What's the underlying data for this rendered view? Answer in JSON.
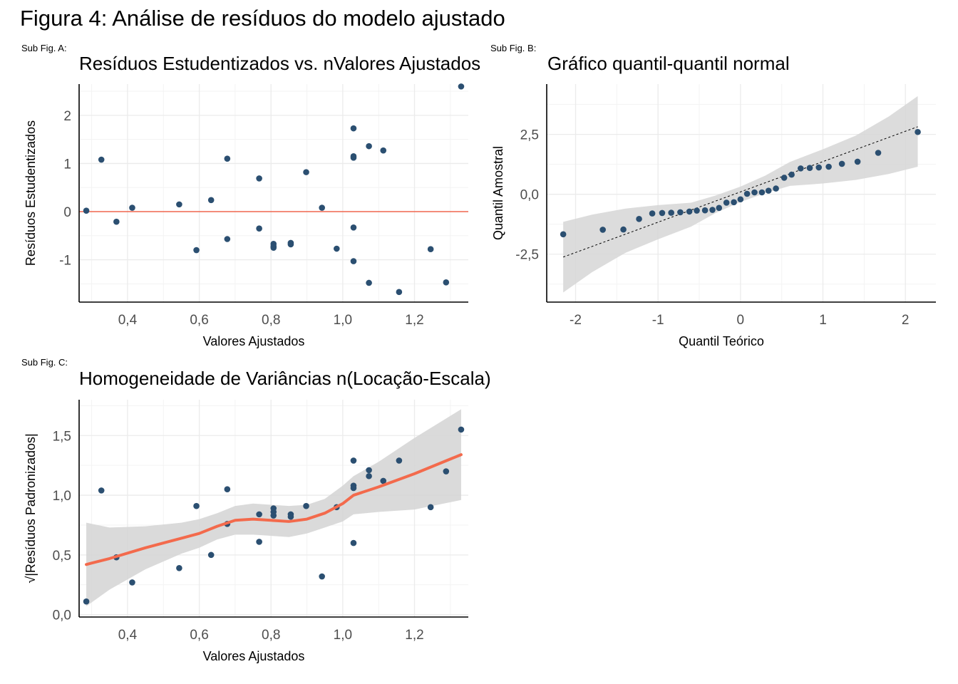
{
  "figure": {
    "title": "Figura 4: Análise de resíduos do modelo ajustado"
  },
  "colors": {
    "point": "#2b4f71",
    "ref_line": "#f2674f",
    "smooth": "#f36a4c",
    "band": "#d6d6d6",
    "grid": "#ebebeb",
    "axis": "#000000"
  },
  "panels": {
    "a": {
      "tag": "Sub Fig. A:",
      "title": "Resíduos Estudentizados vs. nValores Ajustados"
    },
    "b": {
      "tag": "Sub Fig. B:",
      "title": "Gráfico quantil-quantil normal"
    },
    "c": {
      "tag": "Sub Fig. C:",
      "title": "Homogeneidade de Variâncias n(Locação-Escala)"
    }
  },
  "chart_data": [
    {
      "type": "scatter",
      "xlabel": "Valores Ajustados",
      "ylabel": "Resíduos Estudentizados",
      "xlim": [
        0.265,
        1.35
      ],
      "ylim": [
        -1.88,
        2.65
      ],
      "xticks": [
        0.4,
        0.6,
        0.8,
        1.0,
        1.2
      ],
      "xtick_labels": [
        "0,4",
        "0,6",
        "0,8",
        "1,0",
        "1,2"
      ],
      "yticks": [
        -1,
        0,
        1,
        2
      ],
      "ytick_labels": [
        "-1",
        "0",
        "1",
        "2"
      ],
      "hline": 0,
      "grid": true,
      "points": [
        [
          0.285,
          0.02
        ],
        [
          0.327,
          1.08
        ],
        [
          0.369,
          -0.21
        ],
        [
          0.413,
          0.08
        ],
        [
          0.544,
          0.15
        ],
        [
          0.592,
          -0.8
        ],
        [
          0.633,
          0.24
        ],
        [
          0.678,
          1.1
        ],
        [
          0.678,
          -0.57
        ],
        [
          0.767,
          0.69
        ],
        [
          0.767,
          -0.35
        ],
        [
          0.807,
          -0.67
        ],
        [
          0.807,
          -0.72
        ],
        [
          0.807,
          -0.75
        ],
        [
          0.855,
          -0.65
        ],
        [
          0.855,
          -0.68
        ],
        [
          0.898,
          0.82
        ],
        [
          0.942,
          0.08
        ],
        [
          0.983,
          -0.77
        ],
        [
          1.03,
          1.73
        ],
        [
          1.03,
          1.15
        ],
        [
          1.03,
          1.12
        ],
        [
          1.03,
          -0.33
        ],
        [
          1.03,
          -1.03
        ],
        [
          1.073,
          1.36
        ],
        [
          1.073,
          -1.48
        ],
        [
          1.113,
          1.27
        ],
        [
          1.157,
          -1.67
        ],
        [
          1.245,
          -0.78
        ],
        [
          1.288,
          -1.47
        ],
        [
          1.33,
          2.6
        ]
      ]
    },
    {
      "type": "scatter",
      "xlabel": "Quantil Teórico",
      "ylabel": "Quantil Amostral",
      "xlim": [
        -2.35,
        2.37
      ],
      "ylim": [
        -4.5,
        4.6
      ],
      "xticks": [
        -2,
        -1,
        0,
        1,
        2
      ],
      "xtick_labels": [
        "-2",
        "-1",
        "0",
        "1",
        "2"
      ],
      "yticks": [
        -2.5,
        0,
        2.5
      ],
      "ytick_labels": [
        "-2,5",
        "0,0",
        "2,5"
      ],
      "grid": true,
      "reference_line": [
        [
          -2.15,
          -2.62
        ],
        [
          2.15,
          2.82
        ]
      ],
      "confidence_band": {
        "x": [
          -2.15,
          -1.8,
          -1.4,
          -1.0,
          -0.6,
          -0.3,
          0.0,
          0.3,
          0.6,
          1.0,
          1.4,
          1.8,
          2.15
        ],
        "upper": [
          -1.15,
          -0.85,
          -0.6,
          -0.45,
          -0.35,
          -0.05,
          0.32,
          0.78,
          1.35,
          1.88,
          2.45,
          3.25,
          4.1
        ],
        "lower": [
          -4.1,
          -3.25,
          -2.45,
          -1.88,
          -1.35,
          -0.78,
          -0.32,
          0.05,
          0.35,
          0.45,
          0.6,
          0.85,
          1.15
        ]
      },
      "points": [
        [
          -2.15,
          -1.67
        ],
        [
          -1.67,
          -1.48
        ],
        [
          -1.42,
          -1.47
        ],
        [
          -1.23,
          -1.03
        ],
        [
          -1.07,
          -0.8
        ],
        [
          -0.95,
          -0.78
        ],
        [
          -0.84,
          -0.77
        ],
        [
          -0.73,
          -0.75
        ],
        [
          -0.62,
          -0.72
        ],
        [
          -0.53,
          -0.68
        ],
        [
          -0.43,
          -0.67
        ],
        [
          -0.34,
          -0.65
        ],
        [
          -0.26,
          -0.57
        ],
        [
          -0.17,
          -0.35
        ],
        [
          -0.08,
          -0.33
        ],
        [
          0.0,
          -0.21
        ],
        [
          0.08,
          0.02
        ],
        [
          0.17,
          0.08
        ],
        [
          0.26,
          0.08
        ],
        [
          0.34,
          0.15
        ],
        [
          0.43,
          0.24
        ],
        [
          0.53,
          0.69
        ],
        [
          0.62,
          0.82
        ],
        [
          0.73,
          1.08
        ],
        [
          0.84,
          1.1
        ],
        [
          0.95,
          1.12
        ],
        [
          1.07,
          1.15
        ],
        [
          1.23,
          1.27
        ],
        [
          1.42,
          1.36
        ],
        [
          1.67,
          1.73
        ],
        [
          2.15,
          2.6
        ]
      ]
    },
    {
      "type": "scatter",
      "xlabel": "Valores Ajustados",
      "ylabel": "√|Resíduos Padronizados|",
      "xlim": [
        0.265,
        1.35
      ],
      "ylim": [
        -0.02,
        1.8
      ],
      "xticks": [
        0.4,
        0.6,
        0.8,
        1.0,
        1.2
      ],
      "xtick_labels": [
        "0,4",
        "0,6",
        "0,8",
        "1,0",
        "1,2"
      ],
      "yticks": [
        0.0,
        0.5,
        1.0,
        1.5
      ],
      "ytick_labels": [
        "0,0",
        "0,5",
        "1,0",
        "1,5"
      ],
      "grid": true,
      "points": [
        [
          0.285,
          0.11
        ],
        [
          0.327,
          1.04
        ],
        [
          0.369,
          0.48
        ],
        [
          0.413,
          0.27
        ],
        [
          0.544,
          0.39
        ],
        [
          0.592,
          0.91
        ],
        [
          0.633,
          0.5
        ],
        [
          0.678,
          1.05
        ],
        [
          0.678,
          0.76
        ],
        [
          0.767,
          0.84
        ],
        [
          0.767,
          0.61
        ],
        [
          0.807,
          0.89
        ],
        [
          0.807,
          0.86
        ],
        [
          0.807,
          0.83
        ],
        [
          0.855,
          0.84
        ],
        [
          0.855,
          0.82
        ],
        [
          0.898,
          0.91
        ],
        [
          0.942,
          0.32
        ],
        [
          0.983,
          0.9
        ],
        [
          1.03,
          1.29
        ],
        [
          1.03,
          1.08
        ],
        [
          1.03,
          1.06
        ],
        [
          1.03,
          0.6
        ],
        [
          1.073,
          1.21
        ],
        [
          1.073,
          1.16
        ],
        [
          1.113,
          1.12
        ],
        [
          1.157,
          1.29
        ],
        [
          1.245,
          0.9
        ],
        [
          1.288,
          1.2
        ],
        [
          1.33,
          1.55
        ]
      ],
      "smooth": {
        "x": [
          0.285,
          0.35,
          0.45,
          0.55,
          0.6,
          0.65,
          0.7,
          0.75,
          0.8,
          0.85,
          0.9,
          0.95,
          1.0,
          1.03,
          1.1,
          1.2,
          1.33
        ],
        "y": [
          0.42,
          0.47,
          0.56,
          0.64,
          0.68,
          0.74,
          0.79,
          0.8,
          0.79,
          0.78,
          0.8,
          0.85,
          0.93,
          1.0,
          1.07,
          1.18,
          1.34
        ],
        "upper": [
          0.77,
          0.73,
          0.74,
          0.77,
          0.8,
          0.85,
          0.91,
          0.93,
          0.92,
          0.91,
          0.92,
          0.97,
          1.08,
          1.16,
          1.28,
          1.48,
          1.72
        ],
        "lower": [
          0.07,
          0.21,
          0.38,
          0.51,
          0.56,
          0.63,
          0.67,
          0.67,
          0.66,
          0.65,
          0.68,
          0.73,
          0.78,
          0.84,
          0.86,
          0.88,
          0.96
        ]
      }
    }
  ]
}
